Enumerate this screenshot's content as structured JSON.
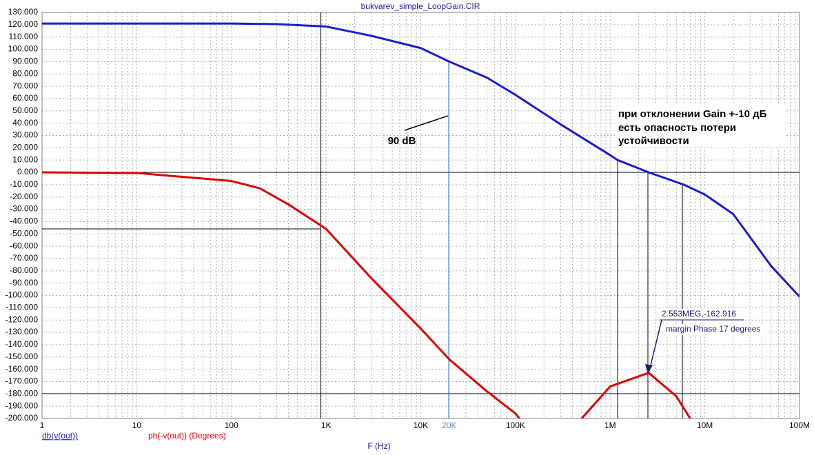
{
  "chart_data": {
    "type": "line",
    "title": "bukvarev_simple_LoopGain.CIR",
    "xlabel": "F (Hz)",
    "xscale": "log",
    "grid": true,
    "xlim": [
      1,
      100000000
    ],
    "ylim": [
      -200,
      130
    ],
    "xticks": [
      {
        "value": 1,
        "label": "1"
      },
      {
        "value": 10,
        "label": "10"
      },
      {
        "value": 100,
        "label": "100"
      },
      {
        "value": 1000,
        "label": "1K"
      },
      {
        "value": 10000,
        "label": "10K"
      },
      {
        "value": 100000,
        "label": "100K"
      },
      {
        "value": 1000000,
        "label": "1M"
      },
      {
        "value": 10000000,
        "label": "10M"
      },
      {
        "value": 100000000,
        "label": "100M"
      }
    ],
    "cursor_xtick": {
      "value": 20000,
      "label": "20K"
    },
    "yticks": [
      {
        "value": 130,
        "label": "130.000"
      },
      {
        "value": 120,
        "label": "120.000"
      },
      {
        "value": 110,
        "label": "110.000"
      },
      {
        "value": 100,
        "label": "100.000"
      },
      {
        "value": 90,
        "label": "90.000"
      },
      {
        "value": 80,
        "label": "80.000"
      },
      {
        "value": 70,
        "label": "70.000"
      },
      {
        "value": 60,
        "label": "60.000"
      },
      {
        "value": 50,
        "label": "50.000"
      },
      {
        "value": 40,
        "label": "40.000"
      },
      {
        "value": 30,
        "label": "30.000"
      },
      {
        "value": 20,
        "label": "20.000"
      },
      {
        "value": 10,
        "label": "10.000"
      },
      {
        "value": 0,
        "label": "0.000"
      },
      {
        "value": -10,
        "label": "-10.000"
      },
      {
        "value": -20,
        "label": "-20.000"
      },
      {
        "value": -30,
        "label": "-30.000"
      },
      {
        "value": -40,
        "label": "-40.000"
      },
      {
        "value": -50,
        "label": "-50.000"
      },
      {
        "value": -60,
        "label": "-60.000"
      },
      {
        "value": -70,
        "label": "-70.000"
      },
      {
        "value": -80,
        "label": "-80.000"
      },
      {
        "value": -90,
        "label": "-90.000"
      },
      {
        "value": -100,
        "label": "-100.000"
      },
      {
        "value": -110,
        "label": "-110.000"
      },
      {
        "value": -120,
        "label": "-120.000"
      },
      {
        "value": -130,
        "label": "-130.000"
      },
      {
        "value": -140,
        "label": "-140.000"
      },
      {
        "value": -150,
        "label": "-150.000"
      },
      {
        "value": -160,
        "label": "-160.000"
      },
      {
        "value": -170,
        "label": "-170.000"
      },
      {
        "value": -180,
        "label": "-180.000"
      },
      {
        "value": -190,
        "label": "-190.000"
      },
      {
        "value": -200,
        "label": "-200.000"
      }
    ],
    "series": [
      {
        "name": "db(v(out))",
        "color": "#1c1ccf",
        "x": [
          1,
          10,
          100,
          300,
          1000,
          3000,
          10000,
          20000,
          50000,
          100000,
          300000,
          1000000,
          1200000,
          2553000,
          6000000,
          10000000,
          20000000,
          50000000,
          100000000
        ],
        "values": [
          121,
          121,
          121,
          120.5,
          118.5,
          111,
          101,
          90,
          77,
          63,
          39,
          14,
          10,
          0,
          -10,
          -18,
          -34,
          -76,
          -101
        ]
      },
      {
        "name": "ph(-v(out)) (Degrees)",
        "color": "#e00000",
        "x": [
          1,
          10,
          100,
          200,
          400,
          1000,
          3000,
          10000,
          20000,
          50000,
          100000,
          110000,
          300000,
          500000,
          1000000,
          2553000,
          5000000,
          7000000
        ],
        "values": [
          0,
          -0.5,
          -7,
          -13,
          -26,
          -46,
          -86,
          -127,
          -152,
          -178,
          -196,
          -200,
          null,
          -200,
          -174,
          -162.916,
          -182,
          -200
        ]
      }
    ],
    "annotations": {
      "gain_label": "90 dB",
      "note": [
        "при отклонении Gain +-10 дБ",
        "есть опасность потери",
        "устойчивости"
      ],
      "cursor": "2.553MEG,-162.916",
      "margin": "margin Phase 17 degrees"
    }
  }
}
